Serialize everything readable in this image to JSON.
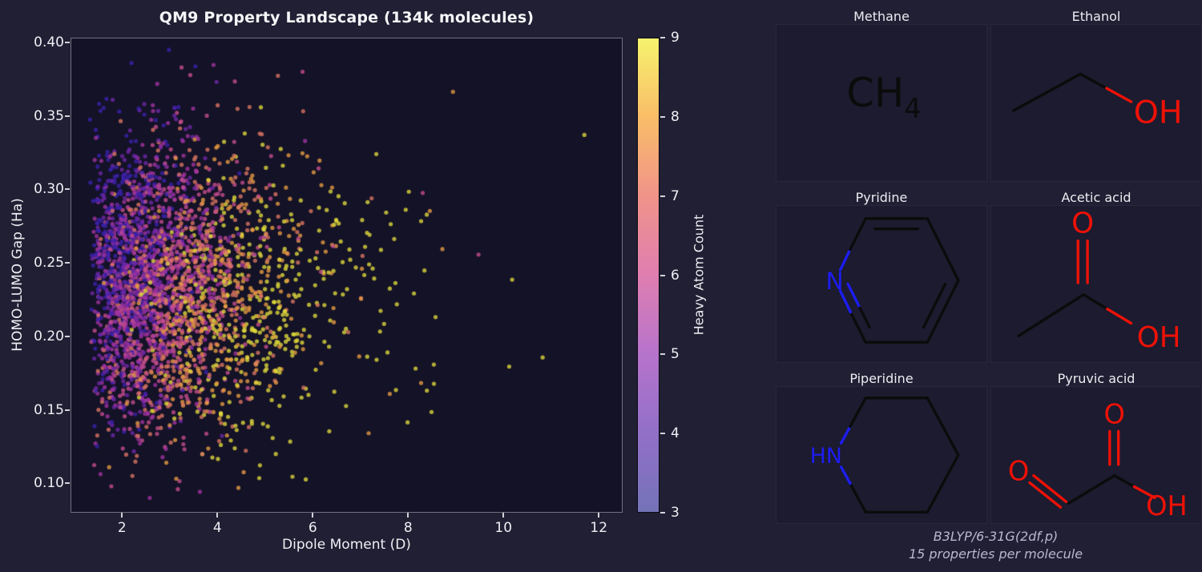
{
  "figure": {
    "bg": "#201f33",
    "plot_bg": "#141227",
    "cell_bg": "#1c1b2f",
    "text_color": "#eef0f4",
    "muted_text": "#bab8cf"
  },
  "chart_data": {
    "type": "scatter",
    "title": "QM9 Property Landscape (134k molecules)",
    "xlabel": "Dipole Moment (D)",
    "ylabel": "HOMO-LUMO Gap (Ha)",
    "xlim": [
      0.92,
      12.5
    ],
    "ylim": [
      0.08,
      0.4033
    ],
    "xticks": [
      "2",
      "4",
      "6",
      "8",
      "10",
      "12"
    ],
    "xtick_values": [
      2,
      4,
      6,
      8,
      10,
      12
    ],
    "yticks": [
      "0.10",
      "0.15",
      "0.20",
      "0.25",
      "0.30",
      "0.35",
      "0.40"
    ],
    "ytick_values": [
      0.1,
      0.15,
      0.2,
      0.25,
      0.3,
      0.35,
      0.4
    ],
    "grid": false,
    "spine_color": "#acacbc",
    "tick_color": "#d2d2da",
    "colorbar": {
      "label": "Heavy Atom Count",
      "tick_labels": [
        "3",
        "4",
        "5",
        "6",
        "7",
        "8",
        "9"
      ],
      "tick_values": [
        3,
        4,
        5,
        6,
        7,
        8,
        9
      ],
      "range": [
        3,
        9
      ],
      "gradient_bottom_to_top": [
        "#7472b8",
        "#9270c8",
        "#b673cc",
        "#df7eb0",
        "#f09389",
        "#f9bd68",
        "#f6f36d"
      ],
      "outline": "#0b0b15"
    },
    "scatter": {
      "point_count_shown": 3000,
      "color_encodes": "heavy atom count (3-9)",
      "palette_by_count": {
        "3": "#3b21ab",
        "4": "#6f28a8",
        "5": "#a133a0",
        "6": "#c64e8e",
        "7": "#dd7663",
        "8": "#e89c43",
        "9": "#e0da3c"
      },
      "alpha": 0.78,
      "radius": 2.6,
      "distribution": {
        "x_shape": "right-skewed, dense 2-6 D, sparse tail to 12.3 D",
        "y_shape": "normal around 0.235 Ha, spanning 0.09-0.40 Ha",
        "color_trend": "low dipole / high gap -> purple (3-4), dense core -> orange-yellow (8-9)"
      },
      "gen": {
        "seed": 1337,
        "n": 3000,
        "x_base": 1.3,
        "x_exp_scales": [
          1.0,
          0.85
        ],
        "x_max": 12.3,
        "y_mean": 0.235,
        "y_sigma": 0.05,
        "y_min": 0.09,
        "y_max": 0.397,
        "count_slope": 1.45,
        "count_cap": 5.9,
        "count_y_ref": 0.27,
        "count_y_coef": 9,
        "count_noise": 1.5
      }
    }
  },
  "molecules": {
    "bond_color": "#0b0b0b",
    "nitrogen_color": "#1d1df2",
    "oxygen_color": "#ee1106",
    "items": [
      {
        "name": "Methane",
        "formula_main": "CH",
        "formula_sub": "4"
      },
      {
        "name": "Ethanol",
        "oh": "OH"
      },
      {
        "name": "Pyridine",
        "n": "N"
      },
      {
        "name": "Acetic acid",
        "o": "O",
        "oh": "OH"
      },
      {
        "name": "Piperidine",
        "hn": "HN"
      },
      {
        "name": "Pyruvic acid",
        "o_top": "O",
        "o_left": "O",
        "oh": "OH"
      }
    ]
  },
  "caption": {
    "line1": "B3LYP/6-31G(2df,p)",
    "line2": "15 properties per molecule"
  }
}
